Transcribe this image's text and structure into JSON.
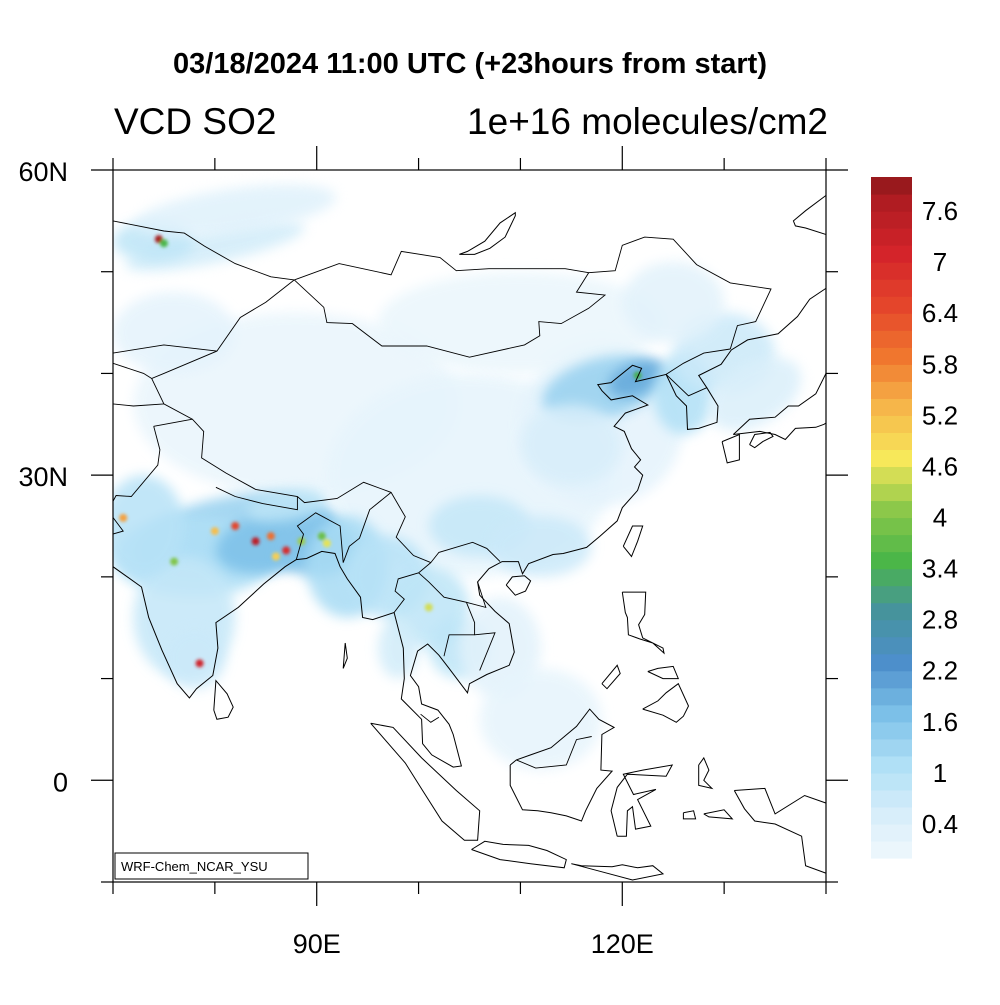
{
  "title": "03/18/2024 11:00 UTC (+23hours from start)",
  "left_subtitle": "VCD SO2",
  "right_subtitle": "1e+16 molecules/cm2",
  "map": {
    "lon_range": [
      70,
      140
    ],
    "lat_range": [
      -10,
      60
    ],
    "x_tick_labels": [
      {
        "lon": 90,
        "label": "90E"
      },
      {
        "lon": 120,
        "label": "120E"
      }
    ],
    "y_tick_labels": [
      {
        "lat": 60,
        "label": "60N"
      },
      {
        "lat": 30,
        "label": "30N"
      },
      {
        "lat": 0,
        "label": "0"
      }
    ],
    "model_label": "WRF-Chem_NCAR_YSU"
  },
  "colorbar": {
    "min": 0,
    "max": 8,
    "step": 0.2,
    "labels": [
      "0.4",
      "1",
      "1.6",
      "2.2",
      "2.8",
      "3.4",
      "4",
      "4.6",
      "5.2",
      "5.8",
      "6.4",
      "7",
      "7.6"
    ],
    "color_anchors": [
      {
        "v": 0.0,
        "c": "#f0f8fd"
      },
      {
        "v": 0.5,
        "c": "#d8eefa"
      },
      {
        "v": 1.1,
        "c": "#b0e0f6"
      },
      {
        "v": 1.7,
        "c": "#7cc0e8"
      },
      {
        "v": 2.3,
        "c": "#4d8fcb"
      },
      {
        "v": 2.9,
        "c": "#46939c"
      },
      {
        "v": 3.5,
        "c": "#4bb648"
      },
      {
        "v": 4.1,
        "c": "#8cc84a"
      },
      {
        "v": 4.7,
        "c": "#f7e85a"
      },
      {
        "v": 5.3,
        "c": "#f6b64a"
      },
      {
        "v": 5.9,
        "c": "#f0762e"
      },
      {
        "v": 6.5,
        "c": "#e4452b"
      },
      {
        "v": 7.1,
        "c": "#d4242a"
      },
      {
        "v": 7.7,
        "c": "#b01c22"
      },
      {
        "v": 8.0,
        "c": "#8e171a"
      }
    ]
  }
}
